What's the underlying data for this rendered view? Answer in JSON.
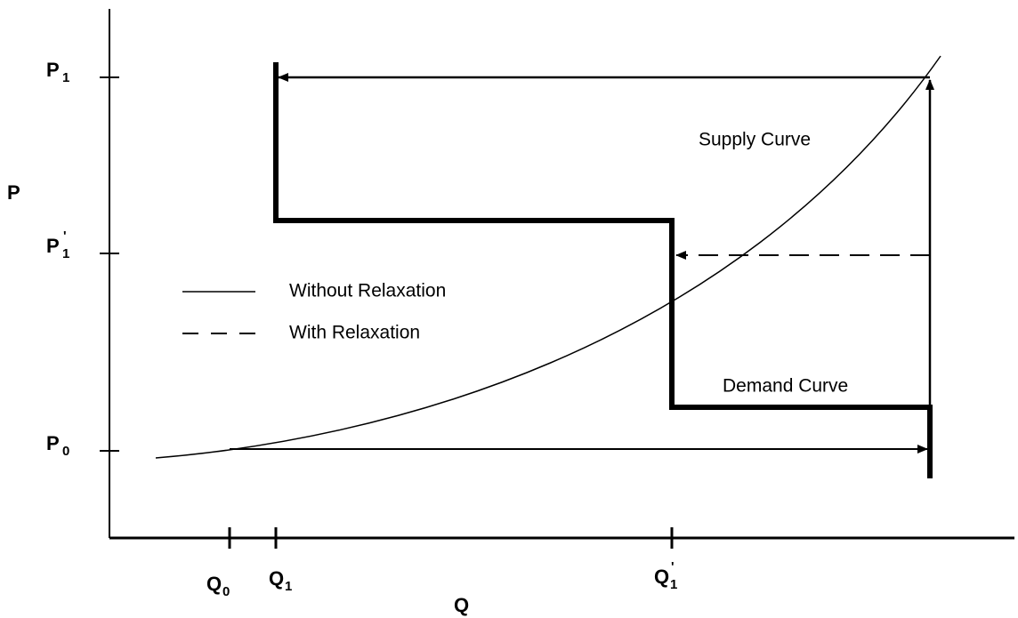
{
  "diagram": {
    "y_axis_label": "P",
    "x_axis_label": "Q",
    "y_ticks": [
      {
        "letter": "P",
        "sub": "1"
      },
      {
        "letter": "P",
        "sub": "1",
        "prime": "'"
      },
      {
        "letter": "P",
        "sub": "0"
      }
    ],
    "x_ticks": [
      {
        "letter": "Q",
        "sub": "0"
      },
      {
        "letter": "Q",
        "sub": "1"
      },
      {
        "letter": "Q",
        "sub": "1",
        "prime": "'"
      }
    ],
    "legend": [
      "Without Relaxation",
      "With Relaxation"
    ],
    "supply_label": "Supply Curve",
    "demand_label": "Demand Curve"
  }
}
